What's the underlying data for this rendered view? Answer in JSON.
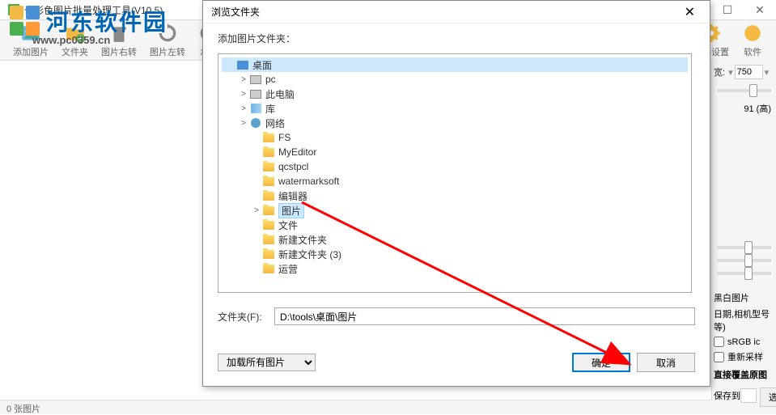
{
  "watermark": {
    "text": "河东软件园",
    "url": "www.pc0359.cn"
  },
  "app": {
    "title": "七彩色图片批量处理工具(V10.5)",
    "toolbar_items": [
      {
        "label": "添加图片"
      },
      {
        "label": "文件夹"
      },
      {
        "label": "图片右转"
      },
      {
        "label": "图片左转"
      },
      {
        "label": "水平"
      }
    ],
    "toolbar_right": [
      {
        "label": "软件设置"
      },
      {
        "label": "软件"
      }
    ],
    "status": "0 张图片"
  },
  "right_panel": {
    "width_label": "宽:",
    "width_value": "750",
    "quality_label": "91 (高)",
    "bw_label": "黑白图片",
    "date_label": "日期,相机型号等)",
    "srgb_label": "sRGB ic",
    "resample_label": "重新采样",
    "overwrite_label": "直接覆盖原图",
    "save_to_label": "保存到",
    "browse_label": "选择"
  },
  "dialog": {
    "title": "浏览文件夹",
    "subtitle": "添加图片文件夹：",
    "path_label": "文件夹(F):",
    "path_value": "D:\\tools\\桌面\\图片",
    "filter_label": "加载所有图片",
    "ok_label": "确定",
    "cancel_label": "取消",
    "tree": [
      {
        "indent": 0,
        "expand": "",
        "icon": "desktop",
        "label": "桌面",
        "root": true
      },
      {
        "indent": 1,
        "expand": ">",
        "icon": "pc",
        "label": "pc"
      },
      {
        "indent": 1,
        "expand": ">",
        "icon": "pc",
        "label": "此电脑"
      },
      {
        "indent": 1,
        "expand": ">",
        "icon": "lib",
        "label": "库"
      },
      {
        "indent": 1,
        "expand": ">",
        "icon": "net",
        "label": "网络"
      },
      {
        "indent": 2,
        "expand": "",
        "icon": "folder",
        "label": "FS"
      },
      {
        "indent": 2,
        "expand": "",
        "icon": "folder",
        "label": "MyEditor"
      },
      {
        "indent": 2,
        "expand": "",
        "icon": "folder",
        "label": "qcstpcl"
      },
      {
        "indent": 2,
        "expand": "",
        "icon": "folder",
        "label": "watermarksoft"
      },
      {
        "indent": 2,
        "expand": "",
        "icon": "folder",
        "label": "编辑器"
      },
      {
        "indent": 2,
        "expand": ">",
        "icon": "folder",
        "label": "图片",
        "selected": true
      },
      {
        "indent": 2,
        "expand": "",
        "icon": "folder",
        "label": "文件"
      },
      {
        "indent": 2,
        "expand": "",
        "icon": "folder",
        "label": "新建文件夹"
      },
      {
        "indent": 2,
        "expand": "",
        "icon": "folder",
        "label": "新建文件夹 (3)"
      },
      {
        "indent": 2,
        "expand": "",
        "icon": "folder",
        "label": "运营"
      }
    ]
  },
  "colors": {
    "arrow": "#ff0000",
    "selection": "#cce8ff",
    "primary_border": "#0078d7"
  }
}
